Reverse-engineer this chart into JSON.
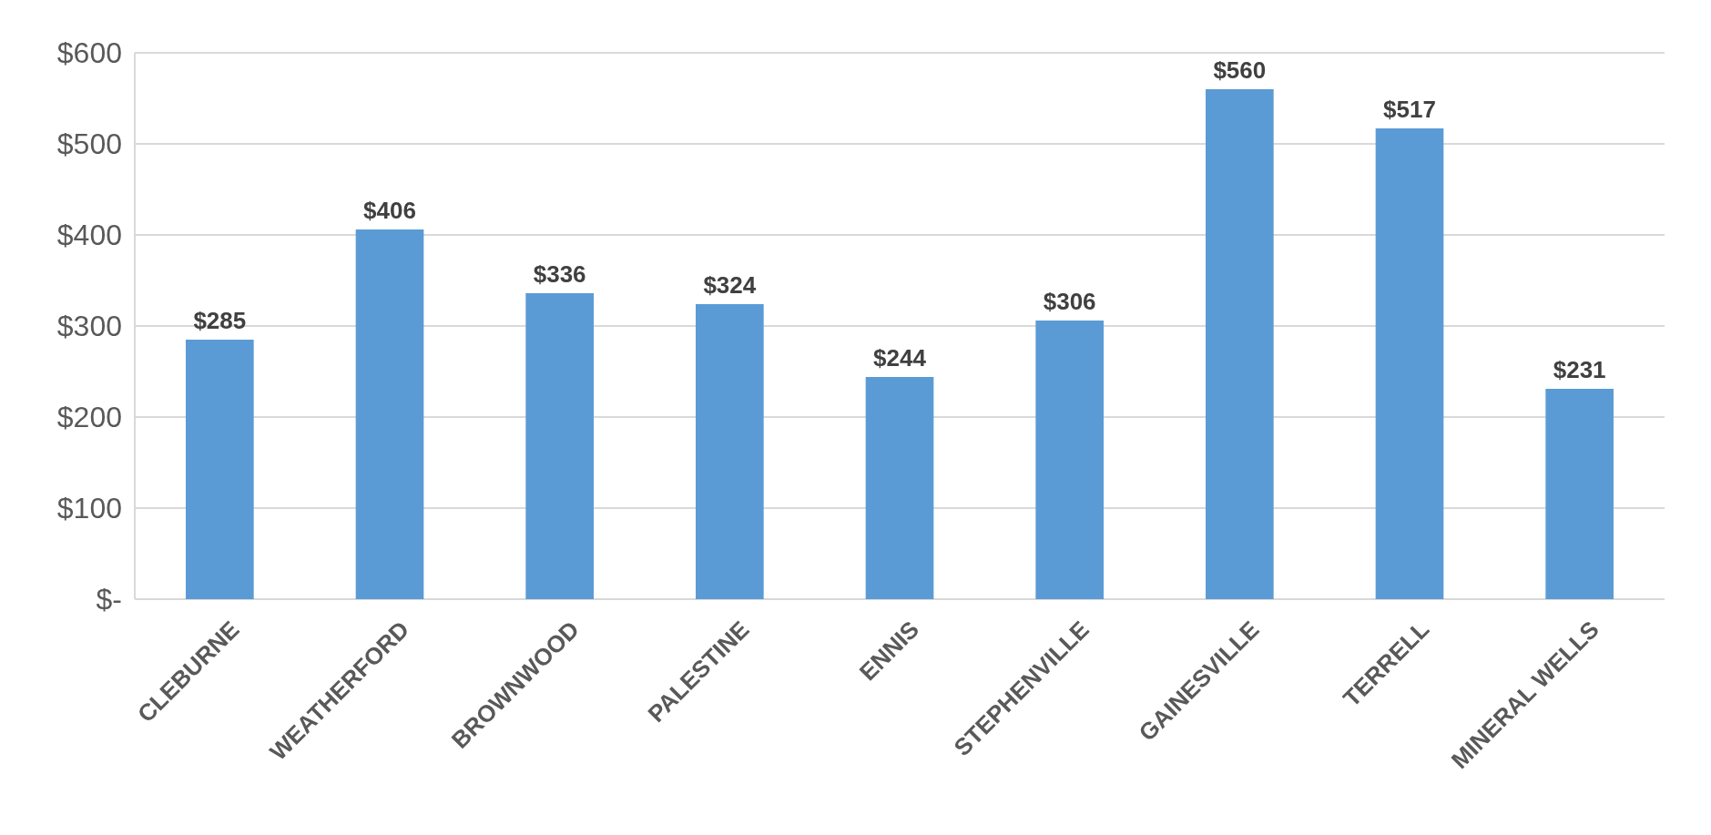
{
  "chart_data": {
    "type": "bar",
    "categories": [
      "CLEBURNE",
      "WEATHERFORD",
      "BROWNWOOD",
      "PALESTINE",
      "ENNIS",
      "STEPHENVILLE",
      "GAINESVILLE",
      "TERRELL",
      "MINERAL WELLS"
    ],
    "values": [
      285,
      406,
      336,
      324,
      244,
      306,
      560,
      517,
      231
    ],
    "value_labels": [
      "$285",
      "$406",
      "$336",
      "$324",
      "$244",
      "$306",
      "$560",
      "$517",
      "$231"
    ],
    "color": "#5b9bd5",
    "ylim": [
      0,
      600
    ],
    "yticks": [
      {
        "value": 0,
        "label": "$-"
      },
      {
        "value": 100,
        "label": "$100"
      },
      {
        "value": 200,
        "label": "$200"
      },
      {
        "value": 300,
        "label": "$300"
      },
      {
        "value": 400,
        "label": "$400"
      },
      {
        "value": 500,
        "label": "$500"
      },
      {
        "value": 600,
        "label": "$600"
      }
    ],
    "grid": "y"
  }
}
